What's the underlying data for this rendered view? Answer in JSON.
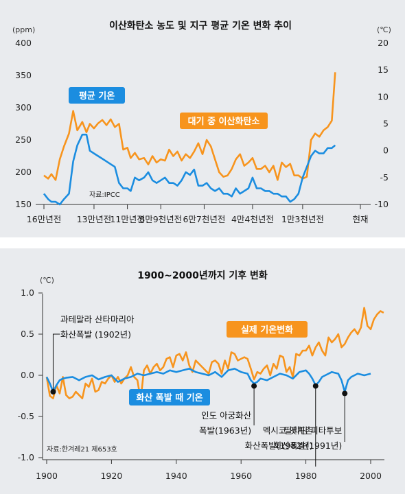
{
  "chart_data": [
    {
      "type": "line",
      "title": "이산화탄소 농도 및 지구 평균 기온 변화 추이",
      "y_left_unit": "(ppm)",
      "y_right_unit": "(℃)",
      "y_left_ticks": [
        "400",
        "350",
        "300",
        "250",
        "200",
        "150"
      ],
      "y_right_ticks": [
        "20",
        "15",
        "10",
        "5",
        "0",
        "-5",
        "-10"
      ],
      "y_left_lim": [
        150,
        400
      ],
      "y_right_lim": [
        -10,
        20
      ],
      "x_lim": [
        0,
        19
      ],
      "x_ticks": [
        {
          "x": 0,
          "label": "16만년전"
        },
        {
          "x": 3,
          "label": "13만년전"
        },
        {
          "x": 5,
          "label": "11만년전"
        },
        {
          "x": 7,
          "label": "8만9천년전"
        },
        {
          "x": 9.6,
          "label": "6만7천년전"
        },
        {
          "x": 12.5,
          "label": "4만4천년전"
        },
        {
          "x": 15.5,
          "label": "1만3천년전"
        },
        {
          "x": 17.2,
          "label": "현재"
        }
      ],
      "source": "자료:IPCC",
      "series": [
        {
          "name": "대기 중 이산화탄소",
          "axis": "left",
          "color": "#f7941d",
          "x": [
            0,
            0.25,
            0.45,
            0.7,
            0.95,
            1.2,
            1.5,
            1.75,
            2.0,
            2.3,
            2.55,
            2.75,
            3.0,
            3.25,
            3.5,
            3.75,
            4.0,
            4.25,
            4.5,
            4.75,
            5.0,
            5.2,
            5.45,
            5.7,
            6.0,
            6.25,
            6.5,
            6.75,
            7.0,
            7.25,
            7.5,
            7.75,
            8.0,
            8.25,
            8.5,
            8.75,
            9.0,
            9.25,
            9.5,
            9.75,
            10.0,
            10.25,
            10.5,
            10.75,
            11.0,
            11.25,
            11.5,
            11.75,
            12.0,
            12.25,
            12.5,
            12.75,
            13.0,
            13.25,
            13.5,
            13.75,
            14.0,
            14.25,
            14.5,
            14.75,
            15.0,
            15.25,
            15.5,
            15.75,
            16.0,
            16.25,
            16.5,
            16.75,
            17.0,
            17.25,
            17.45
          ],
          "values": [
            195,
            190,
            197,
            188,
            220,
            240,
            260,
            295,
            265,
            278,
            262,
            275,
            268,
            276,
            281,
            273,
            282,
            270,
            275,
            235,
            238,
            222,
            230,
            220,
            222,
            212,
            225,
            215,
            220,
            218,
            235,
            225,
            232,
            218,
            228,
            222,
            232,
            245,
            228,
            250,
            240,
            220,
            200,
            193,
            195,
            205,
            220,
            228,
            210,
            215,
            222,
            205,
            205,
            210,
            200,
            210,
            188,
            215,
            208,
            213,
            195,
            195,
            190,
            193,
            250,
            260,
            255,
            265,
            270,
            280,
            355
          ]
        },
        {
          "name": "평균 기온",
          "axis": "right",
          "color": "#1b8de0",
          "x": [
            0,
            0.25,
            0.45,
            0.7,
            0.95,
            1.2,
            1.5,
            1.75,
            2.0,
            2.3,
            2.55,
            2.75,
            3.0,
            3.25,
            3.5,
            3.75,
            4.0,
            4.25,
            4.5,
            4.75,
            5.0,
            5.2,
            5.45,
            5.7,
            6.0,
            6.25,
            6.5,
            6.75,
            7.0,
            7.25,
            7.5,
            7.75,
            8.0,
            8.25,
            8.5,
            8.75,
            9.0,
            9.25,
            9.5,
            9.75,
            10.0,
            10.25,
            10.5,
            10.75,
            11.0,
            11.25,
            11.5,
            11.75,
            12.0,
            12.25,
            12.5,
            12.75,
            13.0,
            13.25,
            13.5,
            13.75,
            14.0,
            14.25,
            14.5,
            14.75,
            15.0,
            15.25,
            15.5,
            15.75,
            16.0,
            16.25,
            16.5,
            16.75,
            17.0,
            17.25,
            17.45
          ],
          "values": [
            -8,
            -9,
            -9.5,
            -9.5,
            -10,
            -9,
            -8,
            -2,
            1,
            3,
            3,
            0,
            -0.5,
            -1,
            -1.5,
            -2,
            -2.5,
            -3,
            -6,
            -7,
            -7,
            -7.5,
            -5,
            -5.5,
            -5,
            -4,
            -5.5,
            -6,
            -5.5,
            -5,
            -6,
            -6,
            -6.5,
            -5.5,
            -4,
            -4.5,
            -3.5,
            -6.5,
            -6.5,
            -6,
            -7,
            -7.5,
            -7,
            -8,
            -8,
            -8.5,
            -7,
            -8,
            -7.5,
            -7,
            -5,
            -7,
            -7,
            -7.5,
            -7.5,
            -8,
            -8,
            -8.5,
            -8.5,
            -9.5,
            -9,
            -8,
            -5,
            -3,
            -1,
            0,
            -0.5,
            -0.5,
            0.5,
            0.5,
            1
          ]
        }
      ]
    },
    {
      "type": "line",
      "title": "1900~2000년까지 기후 변화",
      "y_unit": "(℃)",
      "y_ticks": [
        "1.0",
        "0.5",
        "0.0",
        "-0.5",
        "-1.0"
      ],
      "x_ticks": [
        "1900",
        "1920",
        "1940",
        "1960",
        "1980",
        "2000"
      ],
      "xlim": [
        1900,
        2005
      ],
      "ylim": [
        -1.0,
        1.0
      ],
      "source": "자료:한겨레21 제653호",
      "series": [
        {
          "name": "실제 기온변화",
          "color": "#f7941d",
          "x": [
            1900,
            1901,
            1902,
            1903,
            1904,
            1905,
            1906,
            1907,
            1908,
            1909,
            1910,
            1911,
            1912,
            1913,
            1914,
            1915,
            1916,
            1917,
            1918,
            1919,
            1920,
            1921,
            1922,
            1923,
            1924,
            1925,
            1926,
            1927,
            1928,
            1929,
            1930,
            1931,
            1932,
            1933,
            1934,
            1935,
            1936,
            1937,
            1938,
            1939,
            1940,
            1941,
            1942,
            1943,
            1944,
            1945,
            1946,
            1947,
            1948,
            1949,
            1950,
            1951,
            1952,
            1953,
            1954,
            1955,
            1956,
            1957,
            1958,
            1959,
            1960,
            1961,
            1962,
            1963,
            1964,
            1965,
            1966,
            1967,
            1968,
            1969,
            1970,
            1971,
            1972,
            1973,
            1974,
            1975,
            1976,
            1977,
            1978,
            1979,
            1980,
            1981,
            1982,
            1983,
            1984,
            1985,
            1986,
            1987,
            1988,
            1989,
            1990,
            1991,
            1992,
            1993,
            1994,
            1995,
            1996,
            1997,
            1998,
            1999,
            2000,
            2001,
            2002,
            2003,
            2004
          ],
          "values": [
            -0.02,
            -0.25,
            -0.28,
            -0.12,
            -0.22,
            -0.02,
            -0.24,
            -0.28,
            -0.26,
            -0.2,
            -0.24,
            -0.28,
            -0.1,
            -0.14,
            -0.04,
            -0.2,
            -0.18,
            -0.08,
            -0.1,
            -0.04,
            0.0,
            -0.08,
            -0.02,
            -0.1,
            -0.04,
            0.0,
            0.1,
            -0.02,
            -0.06,
            -0.3,
            0.06,
            0.12,
            0.02,
            0.1,
            0.14,
            0.06,
            0.1,
            0.2,
            0.22,
            0.1,
            0.24,
            0.26,
            0.18,
            0.28,
            0.12,
            0.04,
            0.18,
            0.14,
            0.1,
            0.06,
            0.02,
            0.16,
            0.18,
            0.14,
            0.02,
            0.18,
            0.08,
            0.28,
            0.26,
            0.18,
            0.2,
            0.22,
            0.2,
            0.08,
            -0.05,
            0.04,
            0.02,
            0.08,
            0.12,
            0.0,
            0.14,
            0.08,
            0.24,
            0.22,
            0.04,
            0.1,
            -0.02,
            0.26,
            0.24,
            0.3,
            0.3,
            0.36,
            0.24,
            0.34,
            0.4,
            0.3,
            0.24,
            0.46,
            0.4,
            0.44,
            0.5,
            0.34,
            0.38,
            0.46,
            0.52,
            0.56,
            0.5,
            0.58,
            0.82,
            0.6,
            0.56,
            0.68,
            0.74,
            0.78,
            0.76
          ]
        },
        {
          "name": "화산 폭발 때 기온",
          "color": "#1b8de0",
          "x": [
            1900,
            1901,
            1902,
            1903,
            1904,
            1905,
            1906,
            1908,
            1910,
            1912,
            1914,
            1916,
            1918,
            1920,
            1922,
            1924,
            1926,
            1928,
            1930,
            1932,
            1934,
            1936,
            1938,
            1940,
            1942,
            1944,
            1946,
            1948,
            1950,
            1952,
            1954,
            1956,
            1958,
            1960,
            1962,
            1963,
            1964,
            1965,
            1966,
            1968,
            1970,
            1972,
            1974,
            1976,
            1978,
            1980,
            1981,
            1982,
            1983,
            1984,
            1985,
            1986,
            1988,
            1990,
            1991,
            1992,
            1993,
            1994,
            1995,
            1996,
            1998,
            2000
          ],
          "values": [
            -0.02,
            -0.1,
            -0.2,
            -0.12,
            -0.06,
            -0.04,
            -0.03,
            -0.02,
            -0.06,
            -0.02,
            0.0,
            -0.05,
            -0.02,
            0.0,
            -0.08,
            -0.04,
            -0.02,
            0.02,
            0.0,
            0.02,
            0.04,
            0.02,
            0.06,
            0.04,
            0.06,
            0.08,
            0.04,
            0.02,
            0.0,
            0.04,
            -0.02,
            0.06,
            0.08,
            0.04,
            0.02,
            -0.06,
            -0.1,
            -0.08,
            -0.04,
            -0.06,
            -0.02,
            0.02,
            0.0,
            -0.04,
            0.04,
            0.06,
            0.02,
            -0.04,
            -0.12,
            -0.08,
            -0.02,
            0.0,
            0.04,
            0.02,
            -0.06,
            -0.2,
            -0.06,
            -0.02,
            0.0,
            0.02,
            0.0,
            0.02
          ]
        }
      ],
      "annotations": [
        {
          "year": 1902,
          "value": -0.2,
          "text_lines": [
            "과테말라 산타마리아",
            "화산폭발 (1902년)"
          ]
        },
        {
          "year": 1964,
          "value": -0.13,
          "text_lines": [
            "인도 아궁화산",
            "폭발(1963년)"
          ]
        },
        {
          "year": 1983,
          "value": -0.13,
          "text_lines": [
            "멕시코 엣치촌",
            "화산폭발(1982년)"
          ]
        },
        {
          "year": 1992,
          "value": -0.22,
          "text_lines": [
            "필리핀 피타투보",
            "화산폭발(1991년)"
          ]
        }
      ]
    }
  ]
}
